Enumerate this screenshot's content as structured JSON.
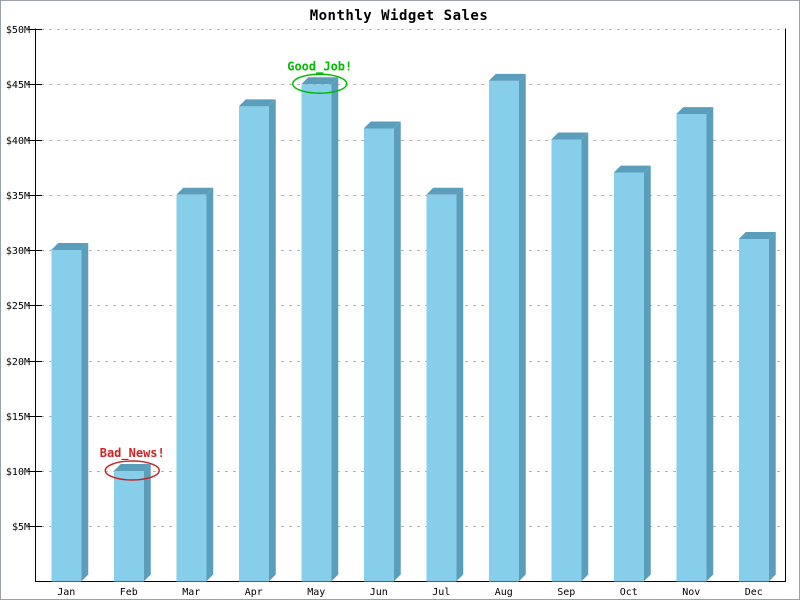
{
  "chart_data": {
    "type": "bar",
    "style": "3d-bars",
    "title": "Monthly Widget Sales",
    "categories": [
      "Jan",
      "Feb",
      "Mar",
      "Apr",
      "May",
      "Jun",
      "Jul",
      "Aug",
      "Sep",
      "Oct",
      "Nov",
      "Dec"
    ],
    "values": [
      30,
      10,
      35,
      43,
      45,
      41,
      35,
      45.3,
      40,
      37,
      42.3,
      31
    ],
    "value_unit": "$M",
    "xlabel": "",
    "ylabel": "",
    "ylim": [
      0,
      50
    ],
    "ytick_step": 5,
    "ytick_labels": [
      "$5M",
      "$10M",
      "$15M",
      "$20M",
      "$25M",
      "$30M",
      "$35M",
      "$40M",
      "$45M",
      "$50M"
    ],
    "grid": "horizontal-dashed",
    "legend": "none",
    "colors": {
      "bar_front": "#87ceeb",
      "bar_side": "#5b9ebc",
      "axis": "#000000",
      "gridline": "#b3b3b3",
      "title": "#000000"
    },
    "annotations": [
      {
        "text": "Good_Job!",
        "target_category": "May",
        "color": "#00bb00",
        "shape": "ellipse"
      },
      {
        "text": "Bad_News!",
        "target_category": "Feb",
        "color": "#cc2222",
        "shape": "ellipse"
      }
    ]
  }
}
